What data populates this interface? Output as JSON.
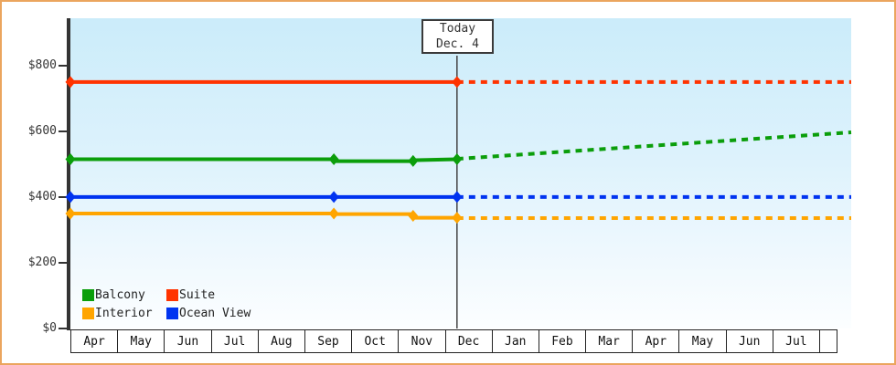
{
  "chart_data": {
    "type": "line",
    "title": "",
    "today_label_line1": "Today",
    "today_label_line2": "Dec. 4",
    "today_month_unit": 8.1,
    "x_axis_unit": "month",
    "x_max": 16.36,
    "months": [
      "Apr",
      "May",
      "Jun",
      "Jul",
      "Aug",
      "Sep",
      "Oct",
      "Nov",
      "Dec",
      "Jan",
      "Feb",
      "Mar",
      "Apr",
      "May",
      "Jun",
      "Jul"
    ],
    "ylim": [
      0,
      944
    ],
    "y_ticks": [
      {
        "label": "$800",
        "value": 800
      },
      {
        "label": "$600",
        "value": 600
      },
      {
        "label": "$400",
        "value": 400
      },
      {
        "label": "$200",
        "value": 200
      },
      {
        "label": "$0",
        "value": 0
      }
    ],
    "grid": "off",
    "legend_position": "bottom-left-inside",
    "legend": [
      {
        "label": "Balcony",
        "color": "#0b9e0b"
      },
      {
        "label": "Suite",
        "color": "#ff3300"
      },
      {
        "label": "Interior",
        "color": "#ffa500"
      },
      {
        "label": "Ocean View",
        "color": "#0033f0"
      }
    ],
    "series": [
      {
        "name": "Suite",
        "color": "#ff3300",
        "solid": [
          [
            0,
            750
          ],
          [
            8.1,
            750
          ]
        ],
        "dashed": [
          [
            8.1,
            750
          ],
          [
            16.36,
            750
          ]
        ],
        "markers": [
          [
            0,
            750
          ],
          [
            8.1,
            750
          ]
        ]
      },
      {
        "name": "Balcony",
        "color": "#0b9e0b",
        "solid": [
          [
            0,
            515
          ],
          [
            5.52,
            515
          ],
          [
            5.52,
            509
          ],
          [
            7.18,
            509
          ],
          [
            7.18,
            512
          ],
          [
            8.1,
            515
          ]
        ],
        "dashed": [
          [
            8.1,
            516
          ],
          [
            16.36,
            597
          ]
        ],
        "markers": [
          [
            0,
            515
          ],
          [
            5.52,
            515
          ],
          [
            7.18,
            510
          ],
          [
            8.1,
            515
          ]
        ]
      },
      {
        "name": "Ocean View",
        "color": "#0033f0",
        "solid": [
          [
            0,
            400
          ],
          [
            8.1,
            400
          ]
        ],
        "dashed": [
          [
            8.1,
            400
          ],
          [
            16.36,
            400
          ]
        ],
        "markers": [
          [
            0,
            400
          ],
          [
            5.52,
            400
          ],
          [
            8.1,
            400
          ]
        ]
      },
      {
        "name": "Interior",
        "color": "#ffa500",
        "solid": [
          [
            0,
            350
          ],
          [
            5.52,
            350
          ],
          [
            5.52,
            348
          ],
          [
            7.18,
            348
          ],
          [
            7.18,
            337
          ],
          [
            8.1,
            337
          ]
        ],
        "dashed": [
          [
            8.1,
            336
          ],
          [
            16.36,
            336
          ]
        ],
        "markers": [
          [
            0,
            350
          ],
          [
            5.52,
            350
          ],
          [
            7.18,
            343
          ],
          [
            8.1,
            337
          ]
        ]
      }
    ],
    "colors": {
      "frame_border": "#eba55e",
      "axis": "#333333",
      "today_line": "#444444",
      "plot_bg_top": "#cbecfa",
      "plot_bg_bottom": "#fcfeff"
    }
  }
}
